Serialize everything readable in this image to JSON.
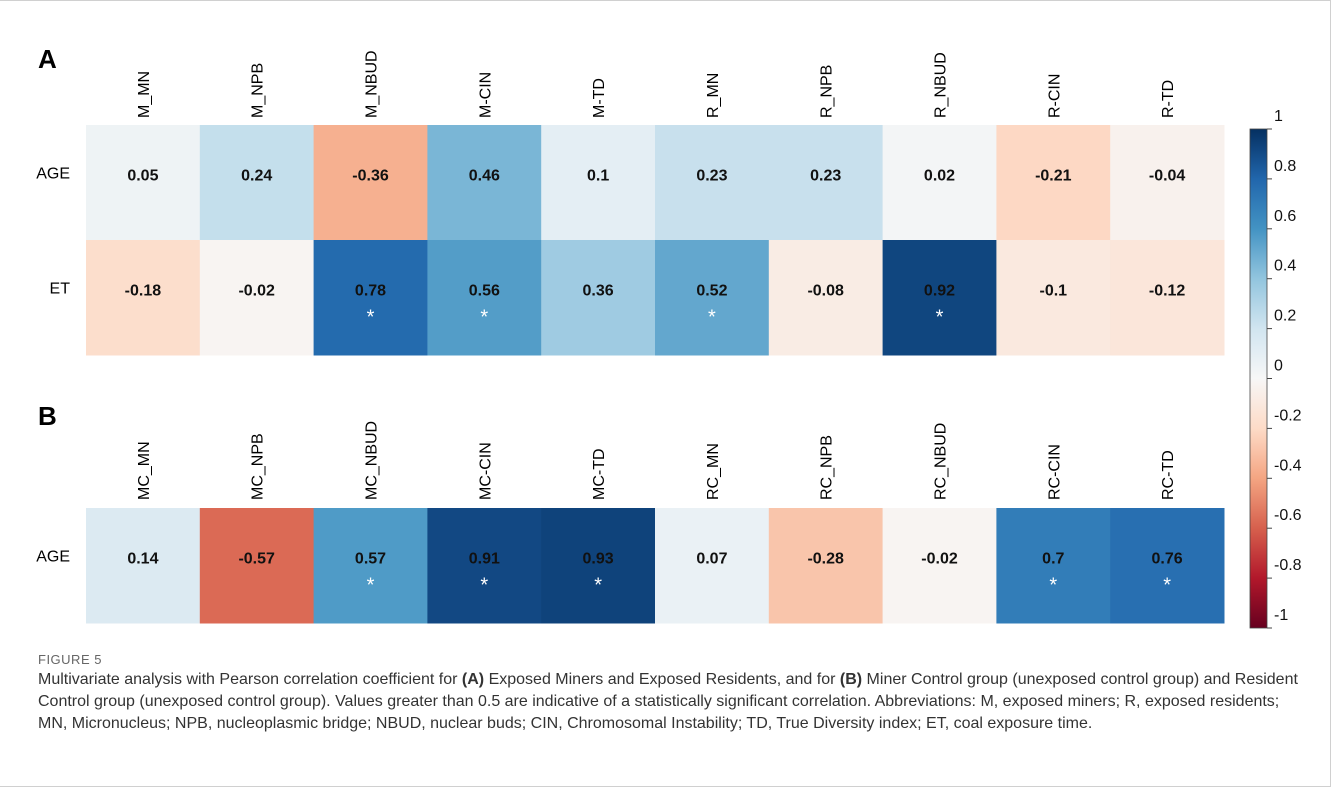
{
  "chart_data": [
    {
      "type": "heatmap",
      "panel_label": "A",
      "columns": [
        "M_MN",
        "M_NPB",
        "M_NBUD",
        "M-CIN",
        "M-TD",
        "R_MN",
        "R_NPB",
        "R_NBUD",
        "R-CIN",
        "R-TD"
      ],
      "rows": [
        {
          "label": "AGE",
          "values": [
            0.05,
            0.24,
            -0.36,
            0.46,
            0.1,
            0.23,
            0.23,
            0.02,
            -0.21,
            -0.04
          ],
          "value_labels": [
            "0.05",
            "0.24",
            "-0.36",
            "0.46",
            "0.1",
            "0.23",
            "0.23",
            "0.02",
            "-0.21",
            "-0.04"
          ],
          "significant": [
            false,
            false,
            false,
            false,
            false,
            false,
            false,
            false,
            false,
            false
          ]
        },
        {
          "label": "ET",
          "values": [
            -0.18,
            -0.02,
            0.78,
            0.56,
            0.36,
            0.52,
            -0.08,
            0.92,
            -0.1,
            -0.12
          ],
          "value_labels": [
            "-0.18",
            "-0.02",
            "0.78",
            "0.56",
            "0.36",
            "0.52",
            "-0.08",
            "0.92",
            "-0.1",
            "-0.12"
          ],
          "significant": [
            false,
            false,
            true,
            true,
            false,
            true,
            false,
            true,
            false,
            false
          ]
        }
      ]
    },
    {
      "type": "heatmap",
      "panel_label": "B",
      "columns": [
        "MC_MN",
        "MC_NPB",
        "MC_NBUD",
        "MC-CIN",
        "MC-TD",
        "RC_MN",
        "RC_NPB",
        "RC_NBUD",
        "RC-CIN",
        "RC-TD"
      ],
      "rows": [
        {
          "label": "AGE",
          "values": [
            0.14,
            -0.57,
            0.57,
            0.91,
            0.93,
            0.07,
            -0.28,
            -0.02,
            0.7,
            0.76
          ],
          "value_labels": [
            "0.14",
            "-0.57",
            "0.57",
            "0.91",
            "0.93",
            "0.07",
            "-0.28",
            "-0.02",
            "0.7",
            "0.76"
          ],
          "significant": [
            false,
            false,
            true,
            true,
            true,
            false,
            false,
            false,
            true,
            true
          ]
        }
      ]
    }
  ],
  "significance_marker": "*",
  "colorbar": {
    "range": [
      -1,
      1
    ],
    "ticks": [
      1,
      0.8,
      0.6,
      0.4,
      0.2,
      0,
      -0.2,
      -0.4,
      -0.6,
      -0.8,
      -1
    ],
    "tick_labels": [
      "1",
      "0.8",
      "0.6",
      "0.4",
      "0.2",
      "0",
      "-0.2",
      "-0.4",
      "-0.6",
      "-0.8",
      "-1"
    ],
    "colors": {
      "neg_end": "#67001f",
      "neutral": "#f7f7f7",
      "pos_end": "#053061"
    }
  },
  "caption": {
    "label": "FIGURE 5",
    "segments": [
      {
        "text": "Multivariate analysis with Pearson correlation coefficient for ",
        "bold": false
      },
      {
        "text": "(A)",
        "bold": true
      },
      {
        "text": " Exposed Miners and Exposed Residents, and for ",
        "bold": false
      },
      {
        "text": "(B)",
        "bold": true
      },
      {
        "text": " Miner Control group (unexposed control group) and Resident Control group (unexposed control group). Values greater than 0.5 are indicative of a statistically significant correlation. Abbreviations: M, exposed miners; R, exposed residents; MN, Micronucleus; NPB, nucleoplasmic bridge; NBUD, nuclear buds; CIN, Chromosomal Instability; TD, True Diversity index; ET, coal exposure time.",
        "bold": false
      }
    ]
  }
}
